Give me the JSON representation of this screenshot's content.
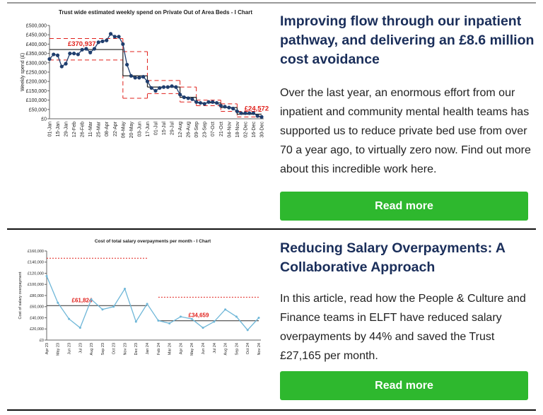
{
  "articles": [
    {
      "title": "Improving flow through our inpatient pathway, and delivering an £8.6 million cost avoidance",
      "body": "Over the last year, an enormous effort from our inpatient and community mental health teams has supported us to reduce private bed use from over 70 a year ago, to virtually zero now. Find out more about this incredible work here.",
      "button": "Read more",
      "chart": {
        "type": "line",
        "title": "Trust wide estimated weekly spend on Private Out of Area Beds - I Chart",
        "y_label": "Weekly spend (£)",
        "categories": [
          "01-Jan",
          null,
          "15-Jan",
          null,
          "29-Jan",
          null,
          "12-Feb",
          null,
          "26-Feb",
          null,
          "11-Mar",
          null,
          "25-Mar",
          null,
          "08-Apr",
          null,
          "22-Apr",
          null,
          "06-May",
          null,
          "20-May",
          null,
          "03-Jun",
          null,
          "17-Jun",
          null,
          "01-Jul",
          null,
          "15-Jul",
          null,
          "29-Jul",
          null,
          "12-Aug",
          null,
          "26-Aug",
          null,
          "09-Sep",
          null,
          "23-Sep",
          null,
          "07-Oct",
          null,
          "21-Oct",
          null,
          "04-Nov",
          null,
          "18-Nov",
          null,
          "02-Dec",
          null,
          "16-Dec",
          null,
          "30-Dec"
        ],
        "values": [
          320000,
          345000,
          340000,
          280000,
          295000,
          350000,
          350000,
          345000,
          370000,
          375000,
          355000,
          375000,
          410000,
          415000,
          420000,
          455000,
          440000,
          440000,
          400000,
          290000,
          230000,
          220000,
          220000,
          225000,
          200000,
          165000,
          150000,
          165000,
          170000,
          170000,
          175000,
          170000,
          130000,
          115000,
          110000,
          105000,
          90000,
          85000,
          80000,
          90000,
          90000,
          85000,
          70000,
          65000,
          60000,
          55000,
          40000,
          30000,
          30000,
          30000,
          30000,
          15000,
          10000
        ],
        "color": "#1f3e6e",
        "marker": true,
        "limit_color": "#e0201b",
        "limit_dash": "6,4",
        "mean_color": "#222222",
        "segments": [
          {
            "start": 0,
            "end": 18,
            "mean": 370937,
            "mean_label": "£370,937",
            "ucl": 430000,
            "lcl": 315000
          },
          {
            "start": 18,
            "end": 24,
            "mean": 230000,
            "ucl": 360000,
            "lcl": 110000
          },
          {
            "start": 24,
            "end": 32,
            "mean": 170000,
            "ucl": 205000,
            "lcl": 135000
          },
          {
            "start": 32,
            "end": 36,
            "mean": 115000,
            "ucl": 170000,
            "lcl": 90000
          },
          {
            "start": 36,
            "end": 42,
            "mean": 85000,
            "ucl": 100000,
            "lcl": 70000
          },
          {
            "start": 42,
            "end": 46,
            "mean": 60000,
            "ucl": 80000,
            "lcl": 40000
          },
          {
            "start": 46,
            "end": 52,
            "mean": 24572,
            "mean_label": "£24,572",
            "ucl": 40000,
            "lcl": 10000
          }
        ],
        "ylim": [
          0,
          500000
        ],
        "yticks": [
          {
            "value": 0,
            "label": "£0"
          },
          {
            "value": 50000,
            "label": "£50,000"
          },
          {
            "value": 100000,
            "label": "£100,000"
          },
          {
            "value": 150000,
            "label": "£150,000"
          },
          {
            "value": 200000,
            "label": "£200,000"
          },
          {
            "value": 250000,
            "label": "£250,000"
          },
          {
            "value": 300000,
            "label": "£300,000"
          },
          {
            "value": 350000,
            "label": "£350,000"
          },
          {
            "value": 400000,
            "label": "£400,000"
          },
          {
            "value": 450000,
            "label": "£450,000"
          },
          {
            "value": 500000,
            "label": "£500,000"
          }
        ]
      }
    },
    {
      "title": "Reducing Salary Overpayments: A Collaborative Approach",
      "body": "In this article, read how the People & Culture and Finance teams in ELFT have reduced salary overpayments by 44% and saved the Trust £27,165 per month.",
      "button": "Read more",
      "chart": {
        "type": "line",
        "title": "Cost of total salary overpayments per month - I Chart",
        "y_label": "Cost of salary overpayment",
        "categories": [
          "Apr 23",
          "May 23",
          "Jun 23",
          "Jul 23",
          "Aug 23",
          "Sep 23",
          "Oct 23",
          "Nov 23",
          "Dec 23",
          "Jan 24",
          "Feb 24",
          "Mar 24",
          "Apr 24",
          "May 24",
          "Jun 24",
          "Jul 24",
          "Aug 24",
          "Sep 24",
          "Oct 24",
          "Nov 24"
        ],
        "values": [
          115000,
          67000,
          38000,
          22000,
          73000,
          55000,
          60000,
          92000,
          33000,
          65000,
          35000,
          30000,
          42000,
          38000,
          22000,
          33000,
          55000,
          42000,
          18000,
          40000
        ],
        "color": "#6fb7d8",
        "marker": true,
        "limit_color": "#e0201b",
        "limit_dash": "2,2",
        "mean_color": "#444444",
        "segments": [
          {
            "start": 0,
            "end": 9,
            "mean": 61824,
            "mean_label": "£61,824",
            "ucl": 147000
          },
          {
            "start": 10,
            "end": 19,
            "mean": 34659,
            "mean_label": "£34,659",
            "ucl": 77000
          }
        ],
        "ylim": [
          0,
          160000
        ],
        "yticks": [
          {
            "value": 0,
            "label": "£0"
          },
          {
            "value": 20000,
            "label": "£20,000"
          },
          {
            "value": 40000,
            "label": "£40,000"
          },
          {
            "value": 60000,
            "label": "£60,000"
          },
          {
            "value": 80000,
            "label": "£80,000"
          },
          {
            "value": 100000,
            "label": "£100,000"
          },
          {
            "value": 120000,
            "label": "£120,000"
          },
          {
            "value": 140000,
            "label": "£140,000"
          },
          {
            "value": 160000,
            "label": "£160,000"
          }
        ]
      }
    }
  ]
}
